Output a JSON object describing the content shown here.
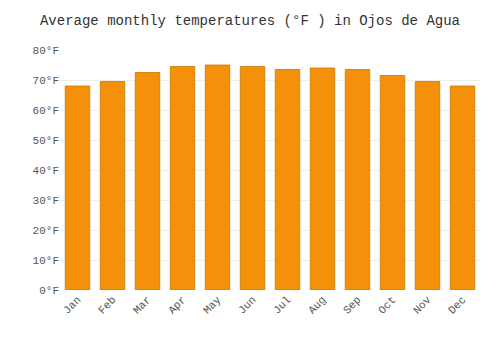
{
  "chart_data": {
    "type": "bar",
    "title": "Average monthly temperatures (°F ) in Ojos de Agua",
    "categories": [
      "Jan",
      "Feb",
      "Mar",
      "Apr",
      "May",
      "Jun",
      "Jul",
      "Aug",
      "Sep",
      "Oct",
      "Nov",
      "Dec"
    ],
    "values": [
      68,
      69.5,
      72.5,
      74.5,
      75,
      74.5,
      73.5,
      74,
      73.5,
      71.5,
      69.5,
      68
    ],
    "color": "#F5900A",
    "ylim": [
      0,
      80
    ],
    "yticks": [
      {
        "value": 0,
        "label": "0°F"
      },
      {
        "value": 10,
        "label": "10°F"
      },
      {
        "value": 20,
        "label": "20°F"
      },
      {
        "value": 30,
        "label": "30°F"
      },
      {
        "value": 40,
        "label": "40°F"
      },
      {
        "value": 50,
        "label": "50°F"
      },
      {
        "value": 60,
        "label": "60°F"
      },
      {
        "value": 70,
        "label": "70°F"
      },
      {
        "value": 80,
        "label": "80°F"
      }
    ],
    "grid": true
  }
}
